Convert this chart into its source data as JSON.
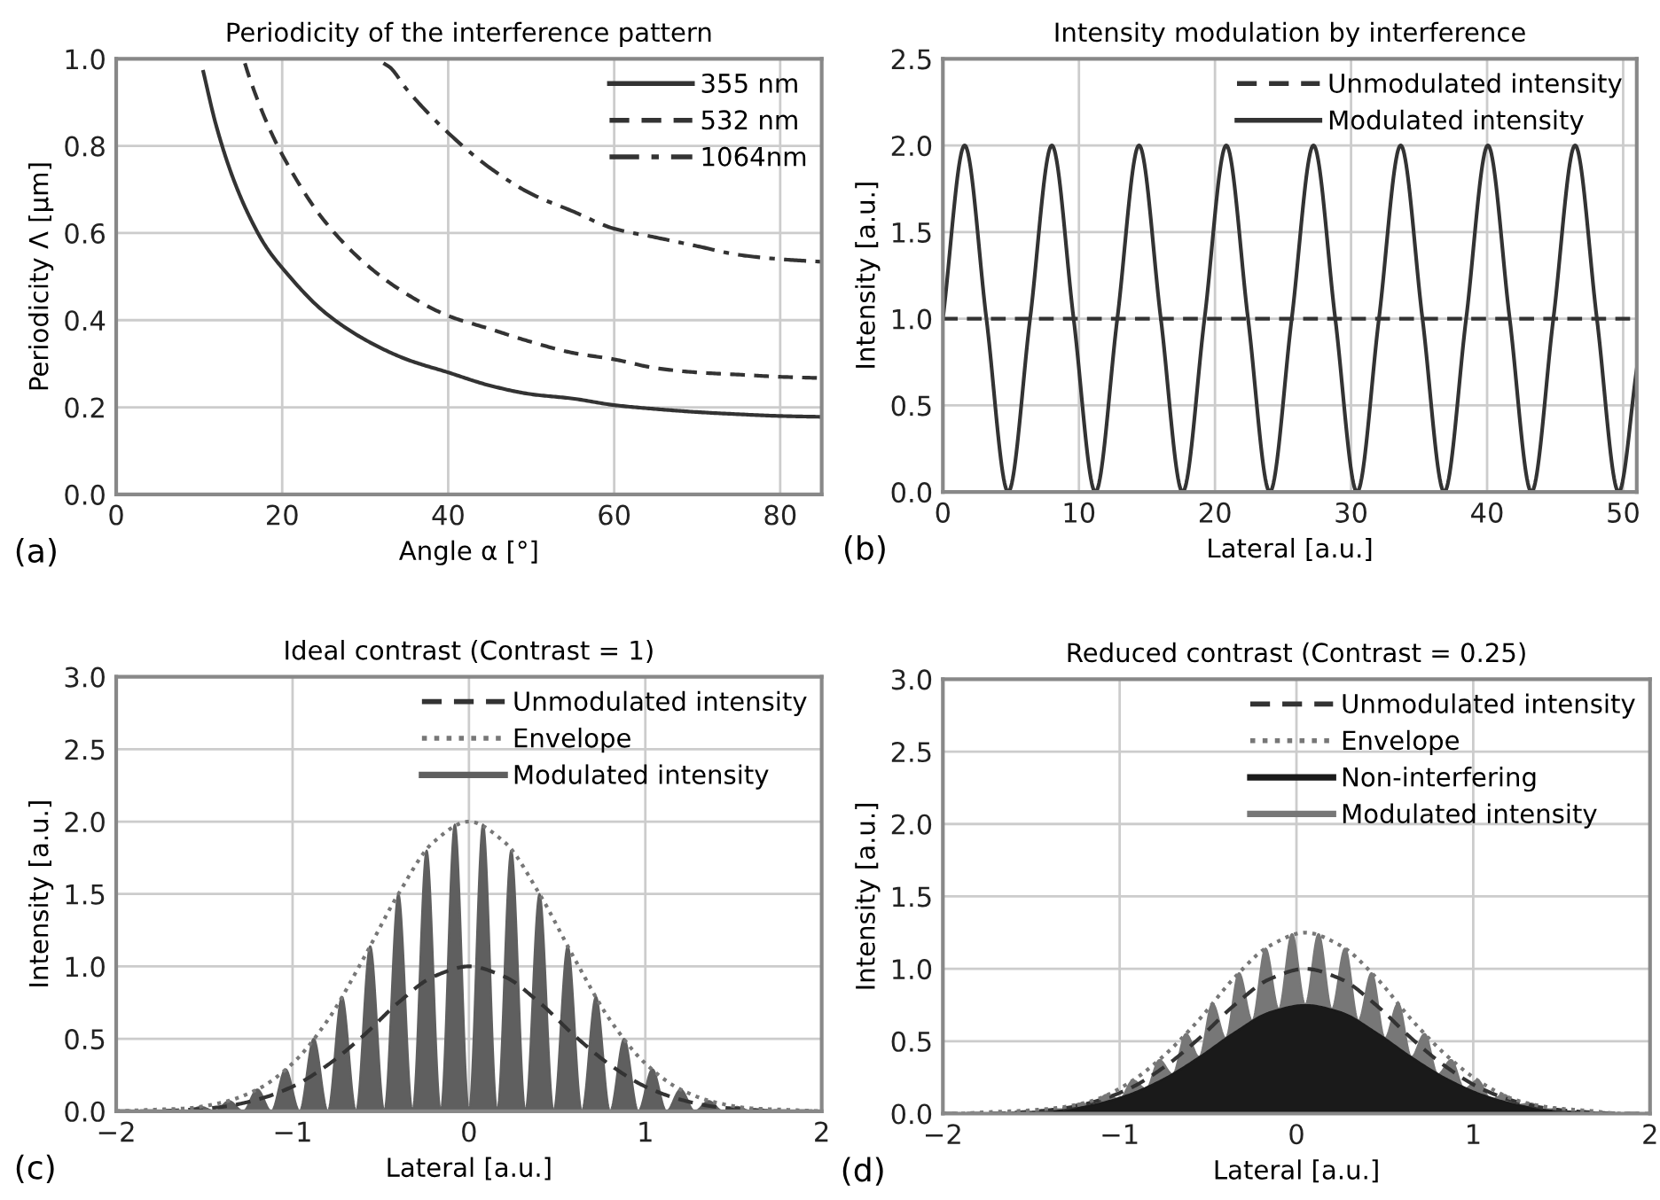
{
  "chart_data": [
    {
      "type": "line",
      "title": "Periodicity of the interference pattern",
      "xlabel": "Angle α [°]",
      "ylabel": "Periodicity Λ [µm]",
      "annotations": [
        "(a)"
      ],
      "xlim": [
        0,
        85
      ],
      "xticks": [
        0,
        20,
        40,
        60,
        80
      ],
      "ylim": [
        0,
        1.0
      ],
      "yticks": [
        {
          "value": 0,
          "label": "0.0"
        },
        {
          "value": 0.2,
          "label": "0.2"
        },
        {
          "value": 0.4,
          "label": "0.4"
        },
        {
          "value": 0.6,
          "label": "0.6"
        },
        {
          "value": 0.8,
          "label": "0.8"
        },
        {
          "value": 1.0,
          "label": "1.0"
        }
      ],
      "grid": true,
      "legend": "top right",
      "series": [
        {
          "name": "355 nm",
          "color": "#333333",
          "line_style": "solid",
          "x": [
            10.5,
            12,
            14,
            16,
            18,
            20,
            25,
            30,
            35,
            40,
            45,
            50,
            55,
            60,
            65,
            70,
            75,
            80,
            85
          ],
          "values": [
            0.97,
            0.85,
            0.73,
            0.64,
            0.57,
            0.52,
            0.42,
            0.355,
            0.31,
            0.28,
            0.25,
            0.23,
            0.22,
            0.205,
            0.196,
            0.189,
            0.184,
            0.18,
            0.178
          ]
        },
        {
          "name": "532 nm",
          "color": "#333333",
          "line_style": "dashed",
          "x": [
            15.5,
            16,
            18,
            20,
            25,
            30,
            35,
            40,
            45,
            50,
            55,
            60,
            65,
            70,
            75,
            80,
            85
          ],
          "values": [
            0.99,
            0.96,
            0.86,
            0.78,
            0.63,
            0.53,
            0.46,
            0.41,
            0.38,
            0.35,
            0.325,
            0.31,
            0.29,
            0.28,
            0.275,
            0.27,
            0.267
          ]
        },
        {
          "name": "1064nm",
          "color": "#333333",
          "line_style": "dashdot",
          "x": [
            32.2,
            33,
            35,
            40,
            45,
            50,
            55,
            60,
            65,
            70,
            75,
            80,
            85
          ],
          "values": [
            0.99,
            0.98,
            0.93,
            0.83,
            0.75,
            0.69,
            0.65,
            0.61,
            0.59,
            0.57,
            0.55,
            0.54,
            0.534
          ]
        }
      ]
    },
    {
      "type": "line",
      "title": "Intensity modulation by interference",
      "xlabel": "Lateral [a.u.]",
      "ylabel": "Intensity [a.u.]",
      "annotations": [
        "(b)"
      ],
      "xlim": [
        0,
        51
      ],
      "xticks": [
        0,
        10,
        20,
        30,
        40,
        50
      ],
      "ylim": [
        0,
        2.5
      ],
      "yticks": [
        {
          "value": 0,
          "label": "0.0"
        },
        {
          "value": 0.5,
          "label": "0.5"
        },
        {
          "value": 1.0,
          "label": "1.0"
        },
        {
          "value": 1.5,
          "label": "1.5"
        },
        {
          "value": 2.0,
          "label": "2.0"
        },
        {
          "value": 2.5,
          "label": "2.5"
        }
      ],
      "grid": true,
      "legend": "top right",
      "series": [
        {
          "name": "Unmodulated intensity",
          "color": "#333333",
          "line_style": "dashed",
          "x": [
            0,
            51
          ],
          "values": [
            1.0,
            1.0
          ]
        },
        {
          "name": "Modulated intensity",
          "color": "#333333",
          "line_style": "solid",
          "x": [
            0,
            1.6,
            3.2,
            4.8,
            6.41,
            8.01,
            9.61,
            11.21,
            12.82,
            14.42,
            16.02,
            17.62,
            19.23,
            20.83,
            22.43,
            24.03,
            25.64,
            27.24,
            28.84,
            30.44,
            32.05,
            33.65,
            35.25,
            36.85,
            38.46,
            40.06,
            41.66,
            43.26,
            44.87,
            46.47,
            48.07,
            49.67,
            51
          ],
          "values": [
            1,
            2,
            1,
            0,
            1,
            2,
            1,
            0,
            1,
            2,
            1,
            0,
            1,
            2,
            1,
            0,
            1,
            2,
            1,
            0,
            1,
            2,
            1,
            0,
            1,
            2,
            1,
            0,
            1,
            2,
            1,
            0,
            0.71
          ]
        }
      ]
    },
    {
      "type": "line",
      "title": "Ideal contrast (Contrast = 1)",
      "xlabel": "Lateral [a.u.]",
      "ylabel": "Intensity [a.u.]",
      "annotations": [
        "(c)"
      ],
      "xlim": [
        -2,
        2
      ],
      "xticks": [
        -2,
        -1,
        0,
        1,
        2
      ],
      "ylim": [
        0,
        3.0
      ],
      "yticks": [
        {
          "value": 0,
          "label": "0.0"
        },
        {
          "value": 0.5,
          "label": "0.5"
        },
        {
          "value": 1.0,
          "label": "1.0"
        },
        {
          "value": 1.5,
          "label": "1.5"
        },
        {
          "value": 2.0,
          "label": "2.0"
        },
        {
          "value": 2.5,
          "label": "2.5"
        },
        {
          "value": 3.0,
          "label": "3.0"
        }
      ],
      "grid": true,
      "legend": "top right",
      "series": [
        {
          "name": "Modulated intensity",
          "type": "area",
          "color": "#5f5f5f",
          "line_style": "solid",
          "x": [
            -1.76,
            -1.68,
            -1.6,
            -1.52,
            -1.44,
            -1.36,
            -1.28,
            -1.2,
            -1.12,
            -1.04,
            -0.96,
            -0.88,
            -0.8,
            -0.72,
            -0.64,
            -0.56,
            -0.48,
            -0.4,
            -0.32,
            -0.24,
            -0.16,
            -0.08,
            0,
            0.08,
            0.16,
            0.24,
            0.32,
            0.4,
            0.48,
            0.56,
            0.64,
            0.72,
            0.8,
            0.88,
            0.96,
            1.04,
            1.12,
            1.2,
            1.28,
            1.36,
            1.44,
            1.52,
            1.6,
            1.68,
            1.76
          ],
          "values": [
            0,
            0.01,
            0,
            0.03,
            0,
            0.07,
            0,
            0.15,
            0,
            0.29,
            0,
            0.5,
            0,
            0.79,
            0,
            1.14,
            0,
            1.5,
            0,
            1.8,
            0,
            1.98,
            0,
            1.98,
            0,
            1.8,
            0,
            1.5,
            0,
            1.14,
            0,
            0.79,
            0,
            0.5,
            0,
            0.29,
            0,
            0.15,
            0,
            0.07,
            0,
            0.03,
            0,
            0.01,
            0
          ]
        },
        {
          "name": "Unmodulated intensity",
          "color": "#333333",
          "line_style": "dashed",
          "x": [
            -2,
            -1.8,
            -1.6,
            -1.4,
            -1.2,
            -1,
            -0.8,
            -0.6,
            -0.4,
            -0.2,
            0,
            0.2,
            0.4,
            0.6,
            0.8,
            1,
            1.2,
            1.4,
            1.6,
            1.8,
            2
          ],
          "values": [
            0,
            0,
            0.01,
            0.03,
            0.08,
            0.17,
            0.32,
            0.52,
            0.75,
            0.93,
            1.0,
            0.93,
            0.75,
            0.52,
            0.32,
            0.17,
            0.08,
            0.03,
            0.01,
            0,
            0
          ]
        },
        {
          "name": "Envelope",
          "color": "#777777",
          "line_style": "dotted",
          "x": [
            -2,
            -1.8,
            -1.6,
            -1.4,
            -1.2,
            -1,
            -0.8,
            -0.6,
            -0.4,
            -0.2,
            0,
            0.2,
            0.4,
            0.6,
            0.8,
            1,
            1.2,
            1.4,
            1.6,
            1.8,
            2
          ],
          "values": [
            0,
            0.01,
            0.02,
            0.06,
            0.15,
            0.33,
            0.63,
            1.05,
            1.5,
            1.86,
            2.0,
            1.86,
            1.5,
            1.05,
            0.63,
            0.33,
            0.15,
            0.06,
            0.02,
            0.01,
            0
          ]
        }
      ]
    },
    {
      "type": "line",
      "title": "Reduced contrast (Contrast = 0.25)",
      "xlabel": "Lateral [a.u.]",
      "ylabel": "Intensity [a.u.]",
      "annotations": [
        "(d)"
      ],
      "xlim": [
        -2,
        2
      ],
      "xticks": [
        -2,
        -1,
        0,
        1,
        2
      ],
      "ylim": [
        0,
        3.0
      ],
      "yticks": [
        {
          "value": 0,
          "label": "0.0"
        },
        {
          "value": 0.5,
          "label": "0.5"
        },
        {
          "value": 1.0,
          "label": "1.0"
        },
        {
          "value": 1.5,
          "label": "1.5"
        },
        {
          "value": 2.0,
          "label": "2.0"
        },
        {
          "value": 2.5,
          "label": "2.5"
        },
        {
          "value": 3.0,
          "label": "3.0"
        }
      ],
      "grid": true,
      "legend": "top right",
      "series": [
        {
          "name": "Modulated intensity",
          "type": "area",
          "color": "#777777",
          "line_style": "solid",
          "x": [
            -1.45,
            -1.375,
            -1.3,
            -1.225,
            -1.15,
            -1.075,
            -1.0,
            -0.925,
            -0.85,
            -0.775,
            -0.7,
            -0.625,
            -0.55,
            -0.475,
            -0.4,
            -0.325,
            -0.25,
            -0.175,
            -0.1,
            -0.025,
            0.05,
            0.125,
            0.2,
            0.275,
            0.35,
            0.425,
            0.5,
            0.575,
            0.65,
            0.725,
            0.8,
            0.875,
            0.95,
            1.025,
            1.1,
            1.175,
            1.25,
            1.325,
            1.4,
            1.475,
            1.55
          ],
          "values": [
            0.01,
            0.03,
            0.03,
            0.07,
            0.06,
            0.13,
            0.1,
            0.23,
            0.17,
            0.37,
            0.27,
            0.55,
            0.39,
            0.76,
            0.52,
            0.97,
            0.64,
            1.14,
            0.72,
            1.24,
            0.75,
            1.24,
            0.72,
            1.14,
            0.64,
            0.97,
            0.52,
            0.76,
            0.39,
            0.55,
            0.27,
            0.37,
            0.17,
            0.23,
            0.1,
            0.13,
            0.06,
            0.07,
            0.03,
            0.03,
            0.01
          ]
        },
        {
          "name": "Non-interfering",
          "type": "area",
          "color": "#1a1a1a",
          "line_style": "solid",
          "x": [
            -2,
            -1.95,
            -1.75,
            -1.55,
            -1.35,
            -1.15,
            -0.95,
            -0.75,
            -0.55,
            -0.35,
            -0.15,
            0.05,
            0.25,
            0.45,
            0.65,
            0.85,
            1.05,
            1.25,
            1.45,
            1.65,
            1.85,
            2
          ],
          "values": [
            0,
            0,
            0,
            0.01,
            0.02,
            0.06,
            0.13,
            0.24,
            0.39,
            0.56,
            0.7,
            0.75,
            0.7,
            0.56,
            0.39,
            0.24,
            0.13,
            0.06,
            0.02,
            0.01,
            0,
            0
          ]
        },
        {
          "name": "Unmodulated intensity",
          "color": "#333333",
          "line_style": "dashed",
          "x": [
            -2,
            -1.95,
            -1.75,
            -1.55,
            -1.35,
            -1.15,
            -0.95,
            -0.75,
            -0.55,
            -0.35,
            -0.15,
            0.05,
            0.25,
            0.45,
            0.65,
            0.85,
            1.05,
            1.25,
            1.45,
            1.65,
            1.85,
            2
          ],
          "values": [
            0,
            0,
            0,
            0.01,
            0.03,
            0.08,
            0.17,
            0.32,
            0.52,
            0.75,
            0.93,
            1.0,
            0.93,
            0.75,
            0.52,
            0.32,
            0.17,
            0.08,
            0.03,
            0.01,
            0,
            0
          ]
        },
        {
          "name": "Envelope",
          "color": "#777777",
          "line_style": "dotted",
          "x": [
            -2,
            -1.95,
            -1.75,
            -1.55,
            -1.35,
            -1.15,
            -0.95,
            -0.75,
            -0.55,
            -0.35,
            -0.15,
            0.05,
            0.25,
            0.45,
            0.65,
            0.85,
            1.05,
            1.25,
            1.45,
            1.65,
            1.85,
            2
          ],
          "values": [
            0,
            0,
            0.01,
            0.02,
            0.04,
            0.09,
            0.21,
            0.4,
            0.65,
            0.94,
            1.16,
            1.25,
            1.16,
            0.94,
            0.65,
            0.4,
            0.21,
            0.09,
            0.04,
            0.02,
            0,
            0
          ]
        }
      ]
    }
  ]
}
